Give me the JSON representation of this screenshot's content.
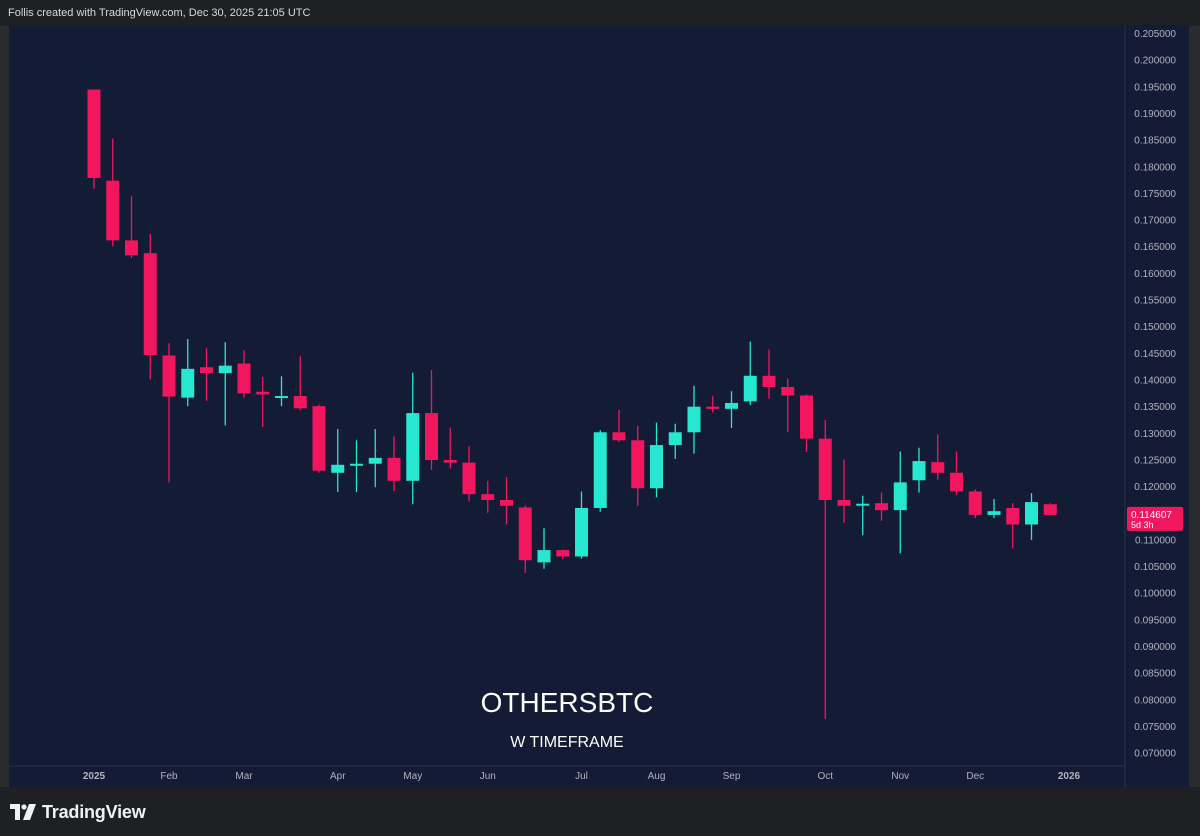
{
  "header": {
    "caption": "Follis created with TradingView.com, Dec 30, 2025 21:05 UTC"
  },
  "footer": {
    "brand_name": "TradingView",
    "logo_icon": "tradingview-logo-icon"
  },
  "colors": {
    "background": "#131b35",
    "up": "#26e8d1",
    "down": "#f2165f",
    "axis_text": "#b2b5be"
  },
  "chart_data": {
    "type": "candlestick",
    "title": "OTHERSBTC",
    "subtitle": "W TIMEFRAME",
    "timeframe": "W",
    "ylim": [
      0.0675,
      0.2065
    ],
    "y_ticks": [
      "0.205000",
      "0.200000",
      "0.195000",
      "0.190000",
      "0.185000",
      "0.180000",
      "0.175000",
      "0.170000",
      "0.165000",
      "0.160000",
      "0.155000",
      "0.150000",
      "0.145000",
      "0.140000",
      "0.135000",
      "0.130000",
      "0.125000",
      "0.120000",
      "0.115000",
      "0.110000",
      "0.105000",
      "0.100000",
      "0.095000",
      "0.090000",
      "0.085000",
      "0.080000",
      "0.075000",
      "0.070000"
    ],
    "x_ticks": [
      {
        "label": "2025",
        "index": 0,
        "bold": true
      },
      {
        "label": "Feb",
        "index": 4
      },
      {
        "label": "Mar",
        "index": 8
      },
      {
        "label": "Apr",
        "index": 13
      },
      {
        "label": "May",
        "index": 17
      },
      {
        "label": "Jun",
        "index": 21
      },
      {
        "label": "Jul",
        "index": 26
      },
      {
        "label": "Aug",
        "index": 30
      },
      {
        "label": "Sep",
        "index": 34
      },
      {
        "label": "Oct",
        "index": 39
      },
      {
        "label": "Nov",
        "index": 43
      },
      {
        "label": "Dec",
        "index": 47
      },
      {
        "label": "2026",
        "index": 52,
        "bold": true
      }
    ],
    "candles": [
      {
        "o": 0.1944,
        "h": 0.1944,
        "l": 0.1758,
        "c": 0.1778
      },
      {
        "o": 0.1773,
        "h": 0.1852,
        "l": 0.165,
        "c": 0.1661
      },
      {
        "o": 0.1661,
        "h": 0.1744,
        "l": 0.1628,
        "c": 0.1633
      },
      {
        "o": 0.1637,
        "h": 0.1673,
        "l": 0.14,
        "c": 0.1446
      },
      {
        "o": 0.1445,
        "h": 0.1468,
        "l": 0.1207,
        "c": 0.1368
      },
      {
        "o": 0.1366,
        "h": 0.1476,
        "l": 0.135,
        "c": 0.142
      },
      {
        "o": 0.1423,
        "h": 0.1459,
        "l": 0.136,
        "c": 0.1412
      },
      {
        "o": 0.1412,
        "h": 0.147,
        "l": 0.1314,
        "c": 0.1426
      },
      {
        "o": 0.143,
        "h": 0.1455,
        "l": 0.1366,
        "c": 0.1374
      },
      {
        "o": 0.1377,
        "h": 0.1405,
        "l": 0.1311,
        "c": 0.1372
      },
      {
        "o": 0.1369,
        "h": 0.1406,
        "l": 0.135,
        "c": 0.1369
      },
      {
        "o": 0.1369,
        "h": 0.1444,
        "l": 0.1342,
        "c": 0.1346
      },
      {
        "o": 0.135,
        "h": 0.1353,
        "l": 0.1225,
        "c": 0.1229
      },
      {
        "o": 0.1225,
        "h": 0.1307,
        "l": 0.1189,
        "c": 0.124
      },
      {
        "o": 0.1242,
        "h": 0.1286,
        "l": 0.1189,
        "c": 0.1242
      },
      {
        "o": 0.1242,
        "h": 0.1307,
        "l": 0.1198,
        "c": 0.1253
      },
      {
        "o": 0.1253,
        "h": 0.1293,
        "l": 0.1191,
        "c": 0.121
      },
      {
        "o": 0.121,
        "h": 0.1413,
        "l": 0.1166,
        "c": 0.1337
      },
      {
        "o": 0.1337,
        "h": 0.1418,
        "l": 0.123,
        "c": 0.1249
      },
      {
        "o": 0.1249,
        "h": 0.131,
        "l": 0.1233,
        "c": 0.1244
      },
      {
        "o": 0.1244,
        "h": 0.1275,
        "l": 0.1171,
        "c": 0.1185
      },
      {
        "o": 0.1185,
        "h": 0.121,
        "l": 0.115,
        "c": 0.1174
      },
      {
        "o": 0.1174,
        "h": 0.1217,
        "l": 0.1128,
        "c": 0.1163
      },
      {
        "o": 0.116,
        "h": 0.1164,
        "l": 0.1037,
        "c": 0.1061
      },
      {
        "o": 0.1057,
        "h": 0.1121,
        "l": 0.1045,
        "c": 0.108
      },
      {
        "o": 0.108,
        "h": 0.1081,
        "l": 0.1063,
        "c": 0.1068
      },
      {
        "o": 0.1068,
        "h": 0.119,
        "l": 0.1064,
        "c": 0.1159
      },
      {
        "o": 0.1159,
        "h": 0.1305,
        "l": 0.1152,
        "c": 0.1301
      },
      {
        "o": 0.1301,
        "h": 0.1343,
        "l": 0.1283,
        "c": 0.1286
      },
      {
        "o": 0.1286,
        "h": 0.1313,
        "l": 0.1163,
        "c": 0.1196
      },
      {
        "o": 0.1196,
        "h": 0.1319,
        "l": 0.1179,
        "c": 0.1277
      },
      {
        "o": 0.1277,
        "h": 0.1317,
        "l": 0.1251,
        "c": 0.1301
      },
      {
        "o": 0.1301,
        "h": 0.1388,
        "l": 0.1261,
        "c": 0.1349
      },
      {
        "o": 0.1349,
        "h": 0.1369,
        "l": 0.1338,
        "c": 0.1345
      },
      {
        "o": 0.1345,
        "h": 0.1378,
        "l": 0.1309,
        "c": 0.1356
      },
      {
        "o": 0.1359,
        "h": 0.1471,
        "l": 0.1352,
        "c": 0.1407
      },
      {
        "o": 0.1407,
        "h": 0.1456,
        "l": 0.1364,
        "c": 0.1386
      },
      {
        "o": 0.1386,
        "h": 0.1402,
        "l": 0.1301,
        "c": 0.137
      },
      {
        "o": 0.137,
        "h": 0.1372,
        "l": 0.1264,
        "c": 0.1289
      },
      {
        "o": 0.1289,
        "h": 0.1324,
        "l": 0.0763,
        "c": 0.1174
      },
      {
        "o": 0.1174,
        "h": 0.125,
        "l": 0.1131,
        "c": 0.1163
      },
      {
        "o": 0.1166,
        "h": 0.1182,
        "l": 0.1108,
        "c": 0.1167
      },
      {
        "o": 0.1168,
        "h": 0.1188,
        "l": 0.1135,
        "c": 0.1155
      },
      {
        "o": 0.1155,
        "h": 0.1265,
        "l": 0.1074,
        "c": 0.1207
      },
      {
        "o": 0.1211,
        "h": 0.1272,
        "l": 0.1188,
        "c": 0.1247
      },
      {
        "o": 0.1245,
        "h": 0.1297,
        "l": 0.1212,
        "c": 0.1225
      },
      {
        "o": 0.1225,
        "h": 0.1265,
        "l": 0.1183,
        "c": 0.119
      },
      {
        "o": 0.119,
        "h": 0.1194,
        "l": 0.114,
        "c": 0.1146
      },
      {
        "o": 0.1146,
        "h": 0.1176,
        "l": 0.114,
        "c": 0.1153
      },
      {
        "o": 0.1159,
        "h": 0.1168,
        "l": 0.1083,
        "c": 0.1128
      },
      {
        "o": 0.1128,
        "h": 0.1187,
        "l": 0.1099,
        "c": 0.117
      },
      {
        "o": 0.1166,
        "h": 0.1168,
        "l": 0.1146,
        "c": 0.1146
      }
    ],
    "last_price": {
      "label": "0.114607",
      "countdown": "5d 3h",
      "value": 0.114607
    }
  }
}
